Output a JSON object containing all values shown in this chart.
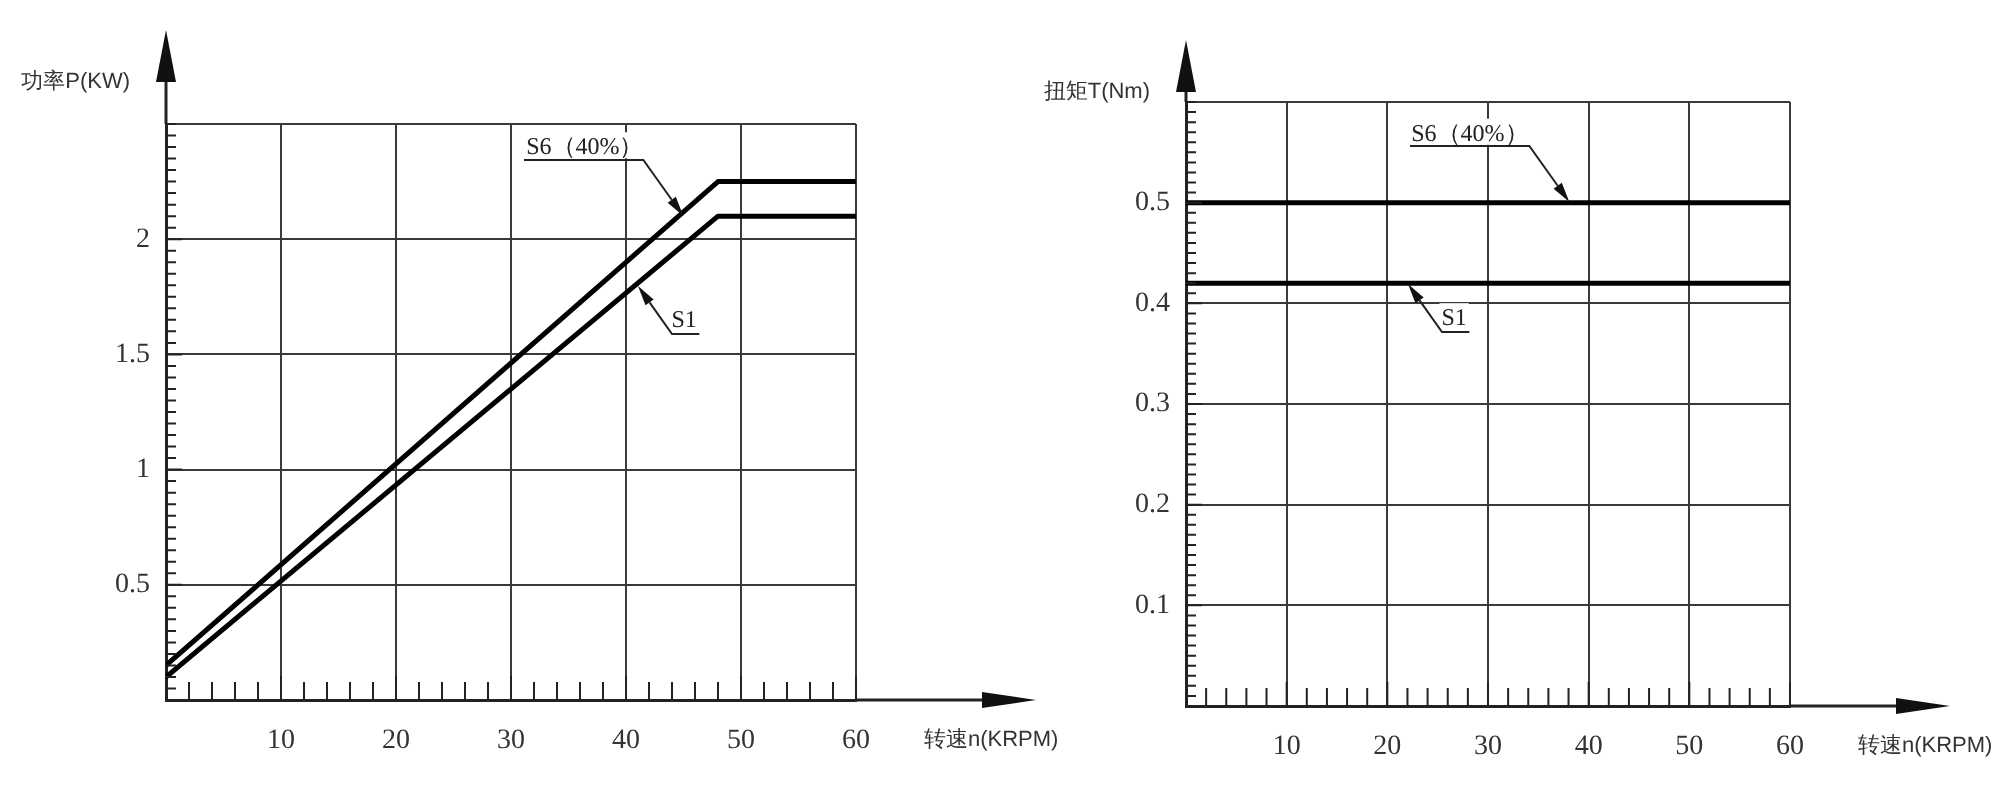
{
  "chart_data": [
    {
      "type": "line",
      "xlabel": "转速n(KRPM)",
      "ylabel": "功率P(KW)",
      "grid": true,
      "marker": "none",
      "line_style": "solid",
      "x": [
        0,
        48,
        60
      ],
      "xlim": [
        0,
        60
      ],
      "xticks": [
        {
          "value": 2,
          "label": null
        },
        {
          "value": 4,
          "label": null
        },
        {
          "value": 6,
          "label": null
        },
        {
          "value": 8,
          "label": null
        },
        10,
        {
          "value": 12,
          "label": null
        },
        {
          "value": 14,
          "label": null
        },
        {
          "value": 16,
          "label": null
        },
        {
          "value": 18,
          "label": null
        },
        20,
        {
          "value": 22,
          "label": null
        },
        {
          "value": 24,
          "label": null
        },
        {
          "value": 26,
          "label": null
        },
        {
          "value": 28,
          "label": null
        },
        30,
        {
          "value": 32,
          "label": null
        },
        {
          "value": 34,
          "label": null
        },
        {
          "value": 36,
          "label": null
        },
        {
          "value": 38,
          "label": null
        },
        40,
        {
          "value": 42,
          "label": null
        },
        {
          "value": 44,
          "label": null
        },
        {
          "value": 46,
          "label": null
        },
        {
          "value": 48,
          "label": null
        },
        50,
        {
          "value": 52,
          "label": null
        },
        {
          "value": 54,
          "label": null
        },
        {
          "value": 56,
          "label": null
        },
        {
          "value": 58,
          "label": null
        },
        60
      ],
      "ylim": [
        0,
        2.5
      ],
      "yticks": [
        {
          "value": 0.05,
          "label": null
        },
        {
          "value": 0.1,
          "label": null
        },
        {
          "value": 0.15,
          "label": null
        },
        {
          "value": 0.2,
          "label": null
        },
        {
          "value": 0.25,
          "label": null
        },
        {
          "value": 0.3,
          "label": null
        },
        {
          "value": 0.35,
          "label": null
        },
        {
          "value": 0.4,
          "label": null
        },
        {
          "value": 0.45,
          "label": null
        },
        0.5,
        {
          "value": 0.55,
          "label": null
        },
        {
          "value": 0.6,
          "label": null
        },
        {
          "value": 0.65,
          "label": null
        },
        {
          "value": 0.7,
          "label": null
        },
        {
          "value": 0.75,
          "label": null
        },
        {
          "value": 0.8,
          "label": null
        },
        {
          "value": 0.85,
          "label": null
        },
        {
          "value": 0.9,
          "label": null
        },
        {
          "value": 0.95,
          "label": null
        },
        1,
        {
          "value": 1.05,
          "label": null
        },
        {
          "value": 1.1,
          "label": null
        },
        {
          "value": 1.15,
          "label": null
        },
        {
          "value": 1.2,
          "label": null
        },
        {
          "value": 1.25,
          "label": null
        },
        {
          "value": 1.3,
          "label": null
        },
        {
          "value": 1.35,
          "label": null
        },
        {
          "value": 1.4,
          "label": null
        },
        {
          "value": 1.45,
          "label": null
        },
        1.5,
        {
          "value": 1.55,
          "label": null
        },
        {
          "value": 1.6,
          "label": null
        },
        {
          "value": 1.65,
          "label": null
        },
        {
          "value": 1.7,
          "label": null
        },
        {
          "value": 1.75,
          "label": null
        },
        {
          "value": 1.8,
          "label": null
        },
        {
          "value": 1.85,
          "label": null
        },
        {
          "value": 1.9,
          "label": null
        },
        {
          "value": 1.95,
          "label": null
        },
        2,
        {
          "value": 2.05,
          "label": null
        },
        {
          "value": 2.1,
          "label": null
        },
        {
          "value": 2.15,
          "label": null
        },
        {
          "value": 2.2,
          "label": null
        },
        {
          "value": 2.25,
          "label": null
        },
        {
          "value": 2.3,
          "label": null
        },
        {
          "value": 2.35,
          "label": null
        },
        {
          "value": 2.4,
          "label": null
        },
        {
          "value": 2.45,
          "label": null
        },
        {
          "value": 2.5,
          "label": null
        }
      ],
      "series": [
        {
          "color": "#000000",
          "values": [
            0.15,
            2.25,
            2.25
          ]
        },
        {
          "color": "#000000",
          "values": [
            0.1,
            2.1,
            2.1
          ]
        }
      ],
      "annotations": [
        {
          "text": "S6（40%）",
          "x": 45,
          "y": 2.1
        },
        {
          "text": "S1",
          "x": 41,
          "y": 1.8
        }
      ]
    },
    {
      "type": "line",
      "xlabel": "转速n(KRPM)",
      "ylabel": "扭矩T(Nm)",
      "grid": true,
      "marker": "none",
      "line_style": "solid",
      "x": [
        0,
        60
      ],
      "xlim": [
        0,
        60
      ],
      "xticks": [
        {
          "value": 2,
          "label": null
        },
        {
          "value": 4,
          "label": null
        },
        {
          "value": 6,
          "label": null
        },
        {
          "value": 8,
          "label": null
        },
        10,
        {
          "value": 12,
          "label": null
        },
        {
          "value": 14,
          "label": null
        },
        {
          "value": 16,
          "label": null
        },
        {
          "value": 18,
          "label": null
        },
        20,
        {
          "value": 22,
          "label": null
        },
        {
          "value": 24,
          "label": null
        },
        {
          "value": 26,
          "label": null
        },
        {
          "value": 28,
          "label": null
        },
        30,
        {
          "value": 32,
          "label": null
        },
        {
          "value": 34,
          "label": null
        },
        {
          "value": 36,
          "label": null
        },
        {
          "value": 38,
          "label": null
        },
        40,
        {
          "value": 42,
          "label": null
        },
        {
          "value": 44,
          "label": null
        },
        {
          "value": 46,
          "label": null
        },
        {
          "value": 48,
          "label": null
        },
        50,
        {
          "value": 52,
          "label": null
        },
        {
          "value": 54,
          "label": null
        },
        {
          "value": 56,
          "label": null
        },
        {
          "value": 58,
          "label": null
        },
        60
      ],
      "ylim": [
        0,
        0.6
      ],
      "yticks": [
        {
          "value": 0.01,
          "label": null
        },
        {
          "value": 0.02,
          "label": null
        },
        {
          "value": 0.03,
          "label": null
        },
        {
          "value": 0.04,
          "label": null
        },
        {
          "value": 0.05,
          "label": null
        },
        {
          "value": 0.06,
          "label": null
        },
        {
          "value": 0.07,
          "label": null
        },
        {
          "value": 0.08,
          "label": null
        },
        {
          "value": 0.09,
          "label": null
        },
        0.1,
        {
          "value": 0.11,
          "label": null
        },
        {
          "value": 0.12,
          "label": null
        },
        {
          "value": 0.13,
          "label": null
        },
        {
          "value": 0.14,
          "label": null
        },
        {
          "value": 0.15,
          "label": null
        },
        {
          "value": 0.16,
          "label": null
        },
        {
          "value": 0.17,
          "label": null
        },
        {
          "value": 0.18,
          "label": null
        },
        {
          "value": 0.19,
          "label": null
        },
        0.2,
        {
          "value": 0.21,
          "label": null
        },
        {
          "value": 0.22,
          "label": null
        },
        {
          "value": 0.23,
          "label": null
        },
        {
          "value": 0.24,
          "label": null
        },
        {
          "value": 0.25,
          "label": null
        },
        {
          "value": 0.26,
          "label": null
        },
        {
          "value": 0.27,
          "label": null
        },
        {
          "value": 0.28,
          "label": null
        },
        {
          "value": 0.29,
          "label": null
        },
        0.3,
        {
          "value": 0.31,
          "label": null
        },
        {
          "value": 0.32,
          "label": null
        },
        {
          "value": 0.33,
          "label": null
        },
        {
          "value": 0.34,
          "label": null
        },
        {
          "value": 0.35,
          "label": null
        },
        {
          "value": 0.36,
          "label": null
        },
        {
          "value": 0.37,
          "label": null
        },
        {
          "value": 0.38,
          "label": null
        },
        {
          "value": 0.39,
          "label": null
        },
        0.4,
        {
          "value": 0.41,
          "label": null
        },
        {
          "value": 0.42,
          "label": null
        },
        {
          "value": 0.43,
          "label": null
        },
        {
          "value": 0.44,
          "label": null
        },
        {
          "value": 0.45,
          "label": null
        },
        {
          "value": 0.46,
          "label": null
        },
        {
          "value": 0.47,
          "label": null
        },
        {
          "value": 0.48,
          "label": null
        },
        {
          "value": 0.49,
          "label": null
        },
        0.5,
        {
          "value": 0.51,
          "label": null
        },
        {
          "value": 0.52,
          "label": null
        },
        {
          "value": 0.53,
          "label": null
        },
        {
          "value": 0.54,
          "label": null
        },
        {
          "value": 0.55,
          "label": null
        },
        {
          "value": 0.56,
          "label": null
        },
        {
          "value": 0.57,
          "label": null
        },
        {
          "value": 0.58,
          "label": null
        },
        {
          "value": 0.59,
          "label": null
        },
        {
          "value": 0.6,
          "label": null
        }
      ],
      "series": [
        {
          "color": "#000000",
          "values": [
            0.5,
            0.5
          ]
        },
        {
          "color": "#000000",
          "values": [
            0.42,
            0.42
          ]
        }
      ],
      "annotations": [
        {
          "text": "S6（40%）",
          "x": 38,
          "y": 0.5
        },
        {
          "text": "S1",
          "x": 22,
          "y": 0.42
        }
      ]
    }
  ]
}
